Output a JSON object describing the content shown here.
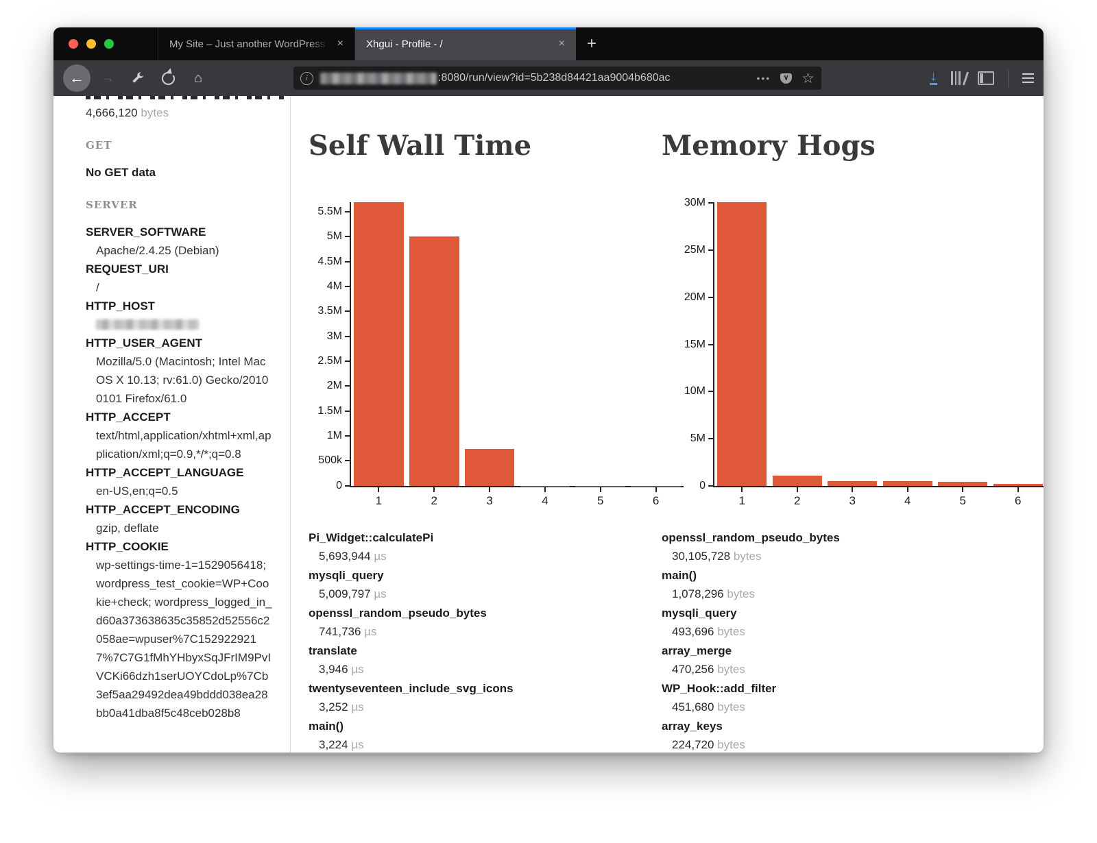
{
  "window": {
    "tabs": [
      {
        "title": "My Site – Just another WordPress si",
        "close_label": "×"
      },
      {
        "title": "Xhgui - Profile - /",
        "close_label": "×"
      }
    ],
    "new_tab_label": "+",
    "navbar": {
      "url_path": ":8080/run/view?id=5b238d84421aa9004b680ac",
      "accent_blue": "#0a84ff",
      "download_blue": "#45a1ff"
    }
  },
  "sidebar": {
    "top_value": "4,666,120",
    "top_unit": "bytes",
    "get_heading": "GET",
    "get_empty": "No GET data",
    "server_heading": "SERVER",
    "server_entries": [
      {
        "key": "SERVER_SOFTWARE",
        "value": "Apache/2.4.25 (Debian)"
      },
      {
        "key": "REQUEST_URI",
        "value": "/"
      },
      {
        "key": "HTTP_HOST",
        "value": ""
      },
      {
        "key": "HTTP_USER_AGENT",
        "value": "Mozilla/5.0 (Macintosh; Intel Mac OS X 10.13; rv:61.0) Gecko/20100101 Firefox/61.0"
      },
      {
        "key": "HTTP_ACCEPT",
        "value": "text/html,application/xhtml+xml,application/xml;q=0.9,*/*;q=0.8"
      },
      {
        "key": "HTTP_ACCEPT_LANGUAGE",
        "value": "en-US,en;q=0.5"
      },
      {
        "key": "HTTP_ACCEPT_ENCODING",
        "value": "gzip, deflate"
      },
      {
        "key": "HTTP_COOKIE",
        "value": "wp-settings-time-1=1529056418; wordpress_test_cookie=WP+Cookie+check; wordpress_logged_in_d60a373638635c35852d52556c2058ae=wpuser%7C1529229217%7C7G1fMhYHbyxSqJFrIM9PvIVCKi66dzh1serUOYCdoLp%7Cb3ef5aa29492dea49bddd038ea28bb0a41dba8f5c48ceb028b8"
      }
    ]
  },
  "chart_data": [
    {
      "type": "bar",
      "title": "Self Wall Time",
      "categories": [
        "1",
        "2",
        "3",
        "4",
        "5",
        "6"
      ],
      "values": [
        5693944,
        5009797,
        741736,
        3946,
        3252,
        3224
      ],
      "unit": "µs",
      "xlabel": "",
      "ylabel": "",
      "ylim": [
        0,
        5693944
      ],
      "grid": false,
      "legend": false,
      "bar_color": "#e0583a",
      "yticks": [
        {
          "v": 0,
          "label": "0"
        },
        {
          "v": 500000,
          "label": "500k"
        },
        {
          "v": 1000000,
          "label": "1M"
        },
        {
          "v": 1500000,
          "label": "1.5M"
        },
        {
          "v": 2000000,
          "label": "2M"
        },
        {
          "v": 2500000,
          "label": "2.5M"
        },
        {
          "v": 3000000,
          "label": "3M"
        },
        {
          "v": 3500000,
          "label": "3.5M"
        },
        {
          "v": 4000000,
          "label": "4M"
        },
        {
          "v": 4500000,
          "label": "4.5M"
        },
        {
          "v": 5000000,
          "label": "5M"
        },
        {
          "v": 5500000,
          "label": "5.5M"
        }
      ]
    },
    {
      "type": "bar",
      "title": "Memory Hogs",
      "categories": [
        "1",
        "2",
        "3",
        "4",
        "5",
        "6"
      ],
      "values": [
        30105728,
        1078296,
        493696,
        470256,
        451680,
        224720
      ],
      "unit": "bytes",
      "xlabel": "",
      "ylabel": "",
      "ylim": [
        0,
        30105728
      ],
      "grid": false,
      "legend": false,
      "bar_color": "#e0583a",
      "yticks": [
        {
          "v": 0,
          "label": "0"
        },
        {
          "v": 5000000,
          "label": "5M"
        },
        {
          "v": 10000000,
          "label": "10M"
        },
        {
          "v": 15000000,
          "label": "15M"
        },
        {
          "v": 20000000,
          "label": "20M"
        },
        {
          "v": 25000000,
          "label": "25M"
        },
        {
          "v": 30000000,
          "label": "30M"
        }
      ]
    }
  ],
  "function_lists": [
    {
      "items": [
        {
          "name": "Pi_Widget::calculatePi",
          "value": "5,693,944",
          "unit": "µs"
        },
        {
          "name": "mysqli_query",
          "value": "5,009,797",
          "unit": "µs"
        },
        {
          "name": "openssl_random_pseudo_bytes",
          "value": "741,736",
          "unit": "µs"
        },
        {
          "name": "translate",
          "value": "3,946",
          "unit": "µs"
        },
        {
          "name": "twentyseventeen_include_svg_icons",
          "value": "3,252",
          "unit": "µs"
        },
        {
          "name": "main()",
          "value": "3,224",
          "unit": "µs"
        }
      ]
    },
    {
      "items": [
        {
          "name": "openssl_random_pseudo_bytes",
          "value": "30,105,728",
          "unit": "bytes"
        },
        {
          "name": "main()",
          "value": "1,078,296",
          "unit": "bytes"
        },
        {
          "name": "mysqli_query",
          "value": "493,696",
          "unit": "bytes"
        },
        {
          "name": "array_merge",
          "value": "470,256",
          "unit": "bytes"
        },
        {
          "name": "WP_Hook::add_filter",
          "value": "451,680",
          "unit": "bytes"
        },
        {
          "name": "array_keys",
          "value": "224,720",
          "unit": "bytes"
        }
      ]
    }
  ]
}
